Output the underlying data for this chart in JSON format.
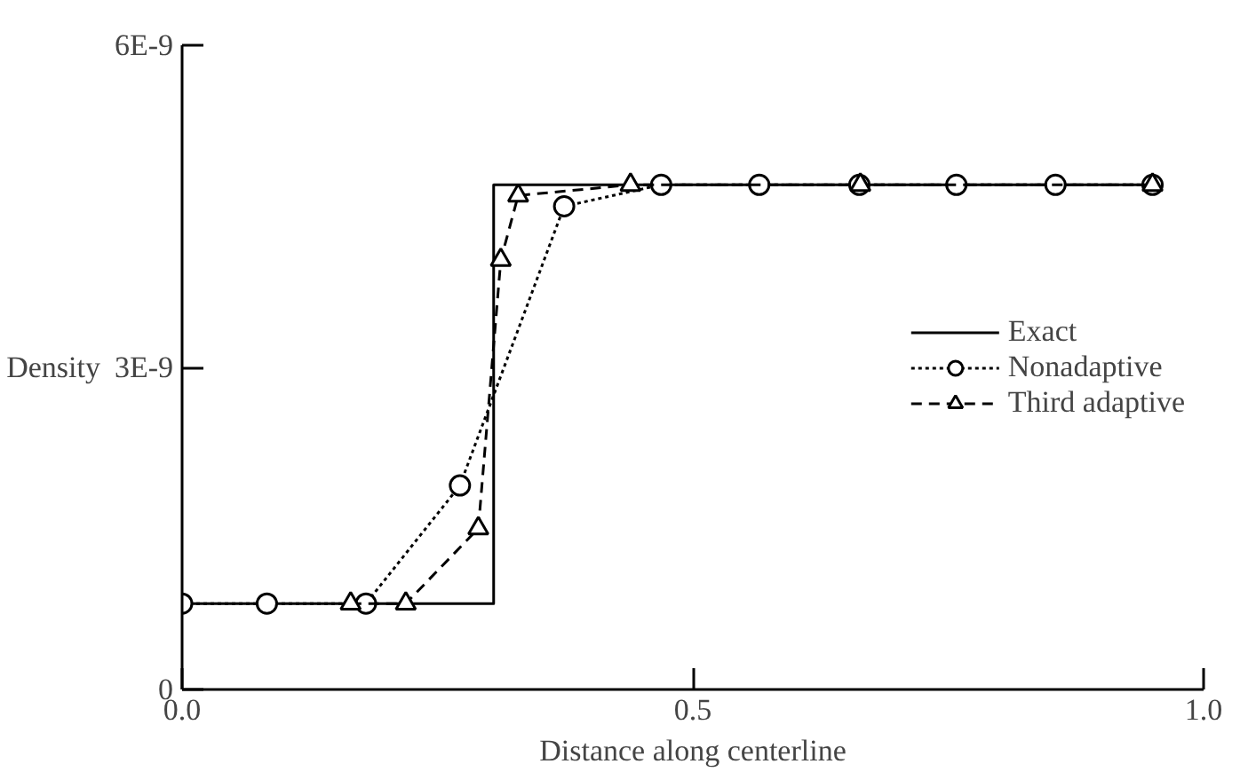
{
  "chart_data": {
    "type": "line",
    "xlabel": "Distance along centerline",
    "ylabel": "Density",
    "xlim": [
      0,
      1.0
    ],
    "ylim": [
      0,
      6e-09
    ],
    "xticks": [
      {
        "value": 0,
        "label": "0.0"
      },
      {
        "value": 0.5,
        "label": "0.5"
      },
      {
        "value": 1.0,
        "label": "1.0"
      }
    ],
    "yticks": [
      {
        "value": 0,
        "label": "0"
      },
      {
        "value": 3e-09,
        "label": "3E-9"
      },
      {
        "value": 6e-09,
        "label": "6E-9"
      }
    ],
    "grid": false,
    "legend": "right",
    "series": [
      {
        "name": "Exact",
        "color": "#000000",
        "line_style": "solid",
        "x": [
          0,
          0.305,
          0.305,
          0.95
        ],
        "values": [
          8e-10,
          8e-10,
          4.7e-09,
          4.7e-09
        ]
      },
      {
        "name": "Nonadaptive",
        "color": "#000000",
        "marker": "circle",
        "line_style": "dotted",
        "x": [
          0,
          0.083,
          0.18,
          0.272,
          0.374,
          0.469,
          0.565,
          0.663,
          0.758,
          0.855,
          0.95
        ],
        "values": [
          8e-10,
          8e-10,
          8e-10,
          1.9e-09,
          4.5e-09,
          4.7e-09,
          4.7e-09,
          4.7e-09,
          4.7e-09,
          4.7e-09,
          4.7e-09
        ]
      },
      {
        "name": "Third adaptive",
        "color": "#000000",
        "marker": "triangle",
        "line_style": "dashed",
        "x": [
          0.165,
          0.219,
          0.29,
          0.312,
          0.329,
          0.439,
          0.664,
          0.95
        ],
        "values": [
          8e-10,
          8e-10,
          1.5e-09,
          4e-09,
          4.6e-09,
          4.7e-09,
          4.7e-09,
          4.7e-09
        ]
      }
    ]
  }
}
